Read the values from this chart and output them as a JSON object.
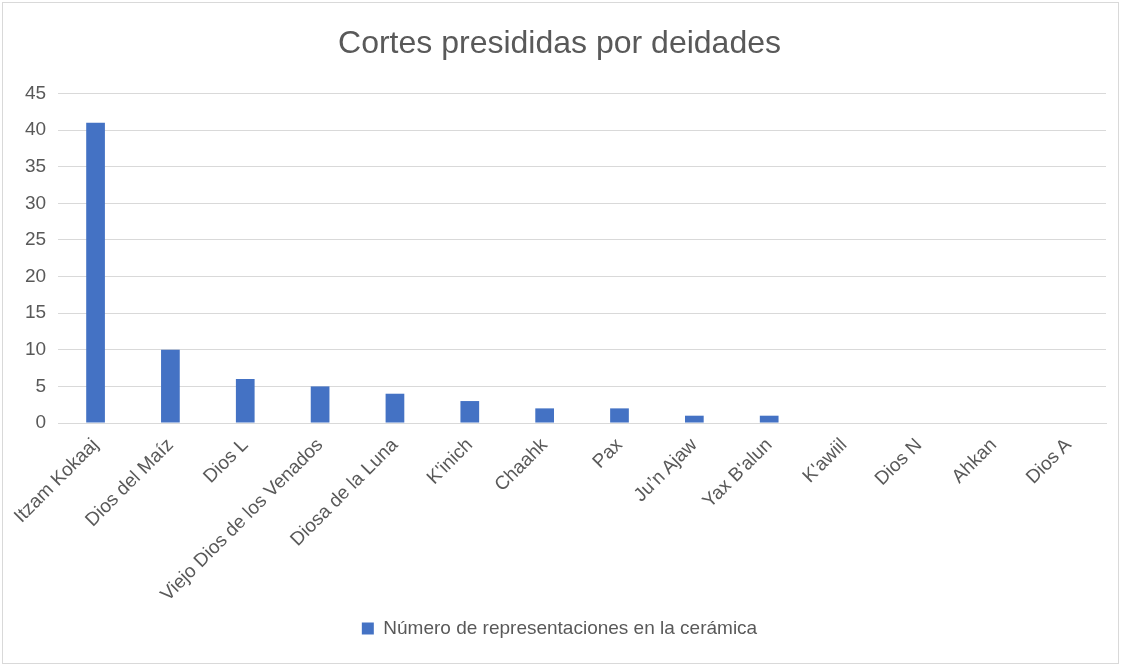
{
  "chart_data": {
    "type": "bar",
    "title": "Cortes presididas por deidades",
    "categories": [
      "Itzam Kokaaj",
      "Dios del Maíz",
      "Dios L",
      "Viejo Dios de los Venados",
      "Diosa de la Luna",
      "K'inich",
      "Chaahk",
      "Pax",
      "Ju’n Ajaw",
      "Yax B'alun",
      "K'awiil",
      "Dios N",
      "Ahkan",
      "Dios A"
    ],
    "series": [
      {
        "name": "Número de representaciones en la cerámica",
        "color": "#4472c4",
        "values": [
          41,
          10,
          6,
          5,
          4,
          3,
          2,
          2,
          1,
          1,
          0,
          0,
          0,
          0
        ]
      }
    ],
    "ylim": [
      0,
      45
    ],
    "yticks": [
      0,
      5,
      10,
      15,
      20,
      25,
      30,
      35,
      40,
      45
    ],
    "grid": "y",
    "legend": "bottom"
  }
}
